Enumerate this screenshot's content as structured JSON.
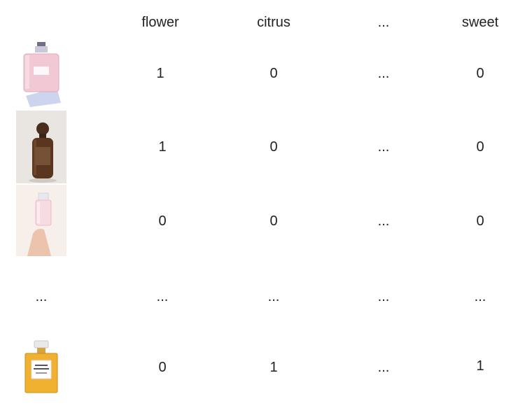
{
  "columns": [
    "flower",
    "citrus",
    "...",
    "sweet"
  ],
  "rows": [
    {
      "image": "pink-chanel-perfume-bottle-image",
      "values": [
        "1",
        "0",
        "...",
        "0"
      ]
    },
    {
      "image": "dark-wooden-perfume-bottle-image",
      "values": [
        "1",
        "0",
        "...",
        "0"
      ]
    },
    {
      "image": "hand-holding-perfume-bottle-image",
      "values": [
        "0",
        "0",
        "...",
        "0"
      ]
    },
    {
      "label": "...",
      "values": [
        "...",
        "...",
        "...",
        "..."
      ]
    },
    {
      "image": "chanel-no5-perfume-bottle-image",
      "values": [
        "0",
        "1",
        "...",
        "1"
      ]
    }
  ]
}
